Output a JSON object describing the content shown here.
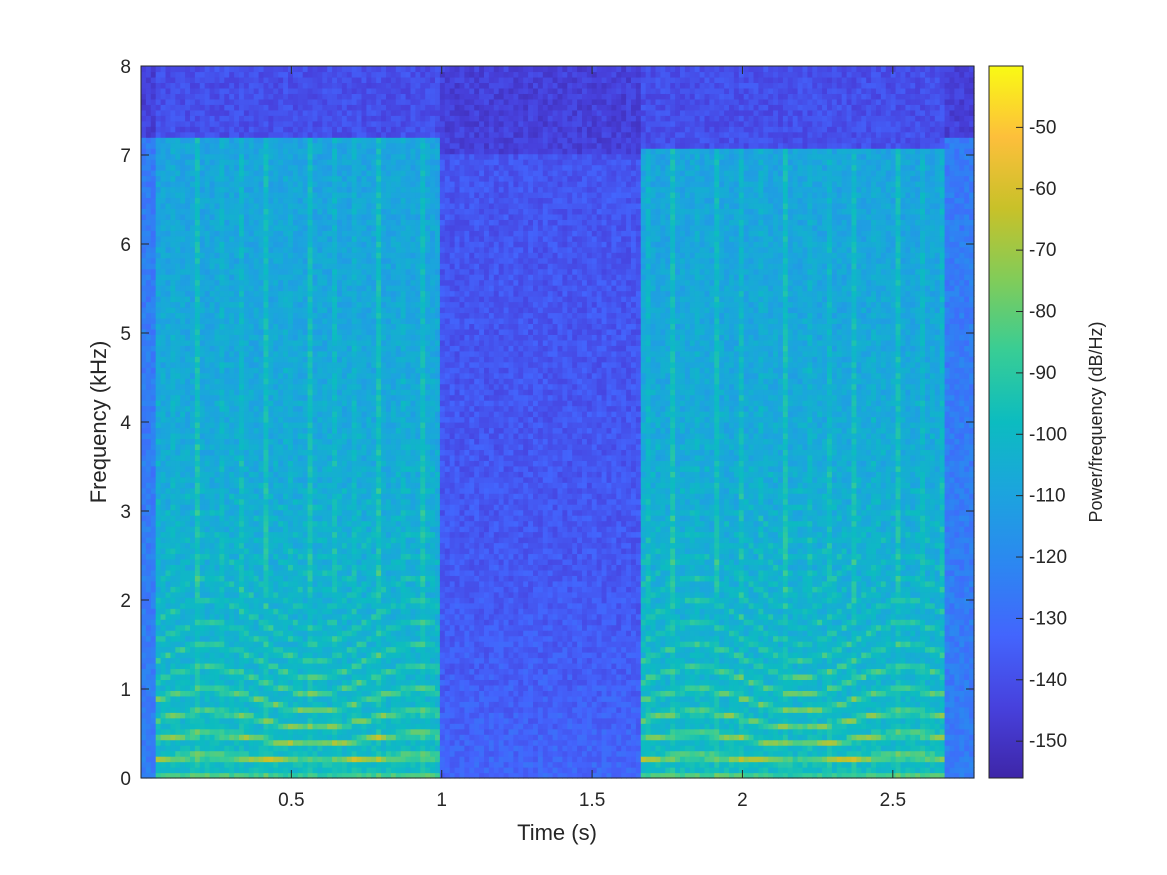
{
  "chart_data": {
    "type": "heatmap",
    "title": "",
    "xlabel": "Time (s)",
    "ylabel": "Frequency (kHz)",
    "xlim": [
      0.0,
      2.77
    ],
    "ylim": [
      0,
      8
    ],
    "x_ticks": [
      0.5,
      1,
      1.5,
      2,
      2.5
    ],
    "x_tick_labels": [
      "0.5",
      "1",
      "1.5",
      "2",
      "2.5"
    ],
    "y_ticks": [
      0,
      1,
      2,
      3,
      4,
      5,
      6,
      7,
      8
    ],
    "y_tick_labels": [
      "0",
      "1",
      "2",
      "3",
      "4",
      "5",
      "6",
      "7",
      "8"
    ],
    "colorbar": {
      "label": "Power/frequency (dB/Hz)",
      "range": [
        -156,
        -40
      ],
      "ticks": [
        -50,
        -60,
        -70,
        -80,
        -90,
        -100,
        -110,
        -120,
        -130,
        -140,
        -150
      ],
      "tick_labels": [
        "-50",
        "-60",
        "-70",
        "-80",
        "-90",
        "-100",
        "-110",
        "-120",
        "-130",
        "-140",
        "-150"
      ],
      "colormap": "parula"
    },
    "segments": [
      {
        "start": 0.05,
        "end": 0.99,
        "kind": "speech",
        "f0_khz": 0.22,
        "max_freq_khz": 7.2
      },
      {
        "start": 0.99,
        "end": 1.67,
        "kind": "silence",
        "max_freq_khz": 7.0
      },
      {
        "start": 1.67,
        "end": 2.68,
        "kind": "speech",
        "f0_khz": 0.22,
        "max_freq_khz": 7.1
      }
    ],
    "grid": false
  }
}
